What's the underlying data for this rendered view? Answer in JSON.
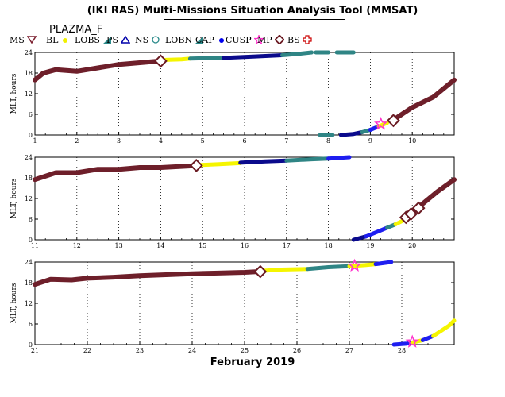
{
  "title": "(IKI RAS) Multi-Missions Situation Analysis Tool (MMSAT)",
  "instrument": "PLAZMA_F",
  "legend": [
    {
      "label": "MS",
      "marker": "triangle-down",
      "color": "#7a1e2e"
    },
    {
      "label": "BL",
      "marker": "dot",
      "color": "#f0f000"
    },
    {
      "label": "LOBS",
      "marker": "wedge",
      "color": "#2b8a8a"
    },
    {
      "label": "PS",
      "marker": "triangle-up",
      "color": "#0000aa"
    },
    {
      "label": "NS",
      "marker": "circle",
      "color": "#2b8a8a"
    },
    {
      "label": "LOBN",
      "marker": "wedge",
      "color": "#2b8a8a"
    },
    {
      "label": "CAP",
      "marker": "dot",
      "color": "#0000ee"
    },
    {
      "label": "CUSP",
      "marker": "star",
      "color": "#ff33cc"
    },
    {
      "label": "MP",
      "marker": "diamond",
      "color": "#6a1a22"
    },
    {
      "label": "BS",
      "marker": "cross",
      "color": "#cc0000"
    }
  ],
  "colors": {
    "MS": "#6e1f2a",
    "BL": "#f5f500",
    "LOB": "#2f8585",
    "PS": "#0a0a8c",
    "CAP": "#1e1ef0",
    "CUSP": "#ff33cc",
    "MP": "#6a1a22",
    "BS": "#cc0000"
  },
  "chart_data": [
    {
      "type": "line",
      "ylabel": "MLT, hours",
      "xlim": [
        1,
        11
      ],
      "ylim": [
        0,
        24
      ],
      "x_ticks": [
        1,
        2,
        3,
        4,
        5,
        6,
        7,
        8,
        9,
        10
      ],
      "x_tick_labels": [
        "1",
        "2",
        "3",
        "4",
        "5",
        "6",
        "7",
        "8",
        "9",
        "10"
      ],
      "y_ticks": [
        0,
        6,
        12,
        18,
        24
      ],
      "y_tick_labels": [
        "0",
        "6",
        "12",
        "18",
        "24"
      ],
      "segments": [
        {
          "region": "MS",
          "points": [
            [
              1,
              16
            ],
            [
              1.2,
              18
            ],
            [
              1.5,
              19
            ],
            [
              2,
              18.5
            ],
            [
              2.5,
              19.5
            ],
            [
              3,
              20.5
            ],
            [
              3.5,
              21
            ],
            [
              4,
              21.5
            ]
          ]
        },
        {
          "region": "BL",
          "points": [
            [
              4.05,
              21.8
            ],
            [
              4.5,
              22
            ],
            [
              4.7,
              22.2
            ]
          ]
        },
        {
          "region": "LOB",
          "points": [
            [
              4.7,
              22.2
            ],
            [
              5,
              22.3
            ],
            [
              5.5,
              22.3
            ]
          ]
        },
        {
          "region": "PS",
          "points": [
            [
              5.5,
              22.4
            ],
            [
              6.2,
              22.8
            ],
            [
              6.9,
              23.2
            ]
          ]
        },
        {
          "region": "LOB",
          "points": [
            [
              6.9,
              23.2
            ],
            [
              7.3,
              23.6
            ],
            [
              7.6,
              24
            ]
          ]
        },
        {
          "region": "LOB",
          "points": [
            [
              7.7,
              24
            ],
            [
              8.0,
              24
            ]
          ]
        },
        {
          "region": "LOB",
          "points": [
            [
              8.2,
              24
            ],
            [
              8.6,
              24
            ]
          ]
        },
        {
          "region": "LOB",
          "points": [
            [
              7.8,
              0
            ],
            [
              8.1,
              0
            ]
          ]
        },
        {
          "region": "PS",
          "points": [
            [
              8.3,
              0
            ],
            [
              8.6,
              0.3
            ],
            [
              8.8,
              0.8
            ]
          ]
        },
        {
          "region": "LOB",
          "points": [
            [
              8.8,
              0.8
            ],
            [
              9.0,
              1.5
            ]
          ]
        },
        {
          "region": "CAP",
          "points": [
            [
              9.0,
              1.5
            ],
            [
              9.2,
              2.5
            ]
          ]
        },
        {
          "region": "BL",
          "points": [
            [
              9.2,
              2.5
            ],
            [
              9.4,
              3.5
            ]
          ]
        },
        {
          "region": "MS",
          "points": [
            [
              9.5,
              4
            ],
            [
              10,
              8
            ],
            [
              10.5,
              11
            ],
            [
              11,
              16
            ]
          ]
        }
      ],
      "crossings": [
        {
          "type": "MP",
          "x": 4.0,
          "y": 21.5
        },
        {
          "type": "MP",
          "x": 9.55,
          "y": 4.2
        },
        {
          "type": "CUSP",
          "x": 9.25,
          "y": 3.2
        }
      ]
    },
    {
      "type": "line",
      "ylabel": "MLT, hours",
      "xlim": [
        11,
        21
      ],
      "ylim": [
        0,
        24
      ],
      "x_ticks": [
        11,
        12,
        13,
        14,
        15,
        16,
        17,
        18,
        19,
        20
      ],
      "x_tick_labels": [
        "11",
        "12",
        "13",
        "14",
        "15",
        "16",
        "17",
        "18",
        "19",
        "20"
      ],
      "y_ticks": [
        0,
        6,
        12,
        18,
        24
      ],
      "y_tick_labels": [
        "0",
        "6",
        "12",
        "18",
        "24"
      ],
      "segments": [
        {
          "region": "MS",
          "points": [
            [
              11,
              17.5
            ],
            [
              11.5,
              19.5
            ],
            [
              12,
              19.5
            ],
            [
              12.5,
              20.5
            ],
            [
              13,
              20.5
            ],
            [
              13.5,
              21
            ],
            [
              14,
              21
            ],
            [
              14.8,
              21.5
            ]
          ]
        },
        {
          "region": "BL",
          "points": [
            [
              14.85,
              21.7
            ],
            [
              15.4,
              22
            ],
            [
              15.9,
              22.3
            ]
          ]
        },
        {
          "region": "PS",
          "points": [
            [
              15.9,
              22.4
            ],
            [
              16.5,
              22.8
            ],
            [
              17,
              23
            ]
          ]
        },
        {
          "region": "LOB",
          "points": [
            [
              17,
              23
            ],
            [
              17.6,
              23.4
            ],
            [
              18,
              23.6
            ]
          ]
        },
        {
          "region": "CAP",
          "points": [
            [
              18,
              23.6
            ],
            [
              18.5,
              24
            ]
          ]
        },
        {
          "region": "PS",
          "points": [
            [
              18.6,
              0
            ],
            [
              18.9,
              1
            ]
          ]
        },
        {
          "region": "CAP",
          "points": [
            [
              18.9,
              1
            ],
            [
              19.2,
              2.5
            ],
            [
              19.4,
              3.5
            ]
          ]
        },
        {
          "region": "LOB",
          "points": [
            [
              19.4,
              3.5
            ],
            [
              19.6,
              4.5
            ]
          ]
        },
        {
          "region": "BL",
          "points": [
            [
              19.6,
              4.5
            ],
            [
              19.85,
              6
            ]
          ]
        },
        {
          "region": "MS",
          "points": [
            [
              19.9,
              7
            ],
            [
              20.2,
              10
            ],
            [
              20.6,
              14
            ],
            [
              21,
              17.5
            ]
          ]
        }
      ],
      "crossings": [
        {
          "type": "MP",
          "x": 14.85,
          "y": 21.6
        },
        {
          "type": "MP",
          "x": 19.85,
          "y": 6.5
        },
        {
          "type": "MP",
          "x": 19.97,
          "y": 7.5
        },
        {
          "type": "MP",
          "x": 20.15,
          "y": 9.2
        }
      ]
    },
    {
      "type": "line",
      "ylabel": "MLT, hours",
      "xlim": [
        21,
        29
      ],
      "ylim": [
        0,
        24
      ],
      "x_ticks": [
        21,
        22,
        23,
        24,
        25,
        26,
        27,
        28
      ],
      "x_tick_labels": [
        "21",
        "22",
        "23",
        "24",
        "25",
        "26",
        "27",
        "28"
      ],
      "y_ticks": [
        0,
        6,
        12,
        18,
        24
      ],
      "y_tick_labels": [
        "0",
        "6",
        "12",
        "18",
        "24"
      ],
      "xlabel": "February 2019",
      "segments": [
        {
          "region": "MS",
          "points": [
            [
              21,
              17.5
            ],
            [
              21.3,
              19
            ],
            [
              21.7,
              18.8
            ],
            [
              22,
              19.3
            ],
            [
              22.5,
              19.6
            ],
            [
              23,
              20
            ],
            [
              23.5,
              20.3
            ],
            [
              24,
              20.6
            ],
            [
              24.5,
              20.8
            ],
            [
              25,
              21
            ],
            [
              25.25,
              21.2
            ]
          ]
        },
        {
          "region": "BL",
          "points": [
            [
              25.3,
              21.4
            ],
            [
              25.7,
              21.8
            ],
            [
              26.2,
              22
            ]
          ]
        },
        {
          "region": "LOB",
          "points": [
            [
              26.2,
              22
            ],
            [
              26.6,
              22.5
            ],
            [
              27,
              22.8
            ]
          ]
        },
        {
          "region": "BL",
          "points": [
            [
              27,
              22.8
            ],
            [
              27.3,
              23.1
            ],
            [
              27.5,
              23.4
            ]
          ]
        },
        {
          "region": "CAP",
          "points": [
            [
              27.5,
              23.4
            ],
            [
              27.8,
              24
            ]
          ]
        },
        {
          "region": "CAP",
          "points": [
            [
              27.85,
              0
            ],
            [
              28.1,
              0.3
            ],
            [
              28.2,
              0.6
            ]
          ]
        },
        {
          "region": "BL",
          "points": [
            [
              28.2,
              0.6
            ],
            [
              28.4,
              1.3
            ]
          ]
        },
        {
          "region": "CAP",
          "points": [
            [
              28.4,
              1.3
            ],
            [
              28.6,
              2.5
            ]
          ]
        },
        {
          "region": "BL",
          "points": [
            [
              28.6,
              2.5
            ],
            [
              28.9,
              5.5
            ],
            [
              29,
              7
            ]
          ]
        }
      ],
      "crossings": [
        {
          "type": "MP",
          "x": 25.3,
          "y": 21.2
        },
        {
          "type": "CUSP",
          "x": 27.1,
          "y": 22.9
        },
        {
          "type": "CUSP",
          "x": 28.2,
          "y": 0.8
        }
      ]
    }
  ]
}
